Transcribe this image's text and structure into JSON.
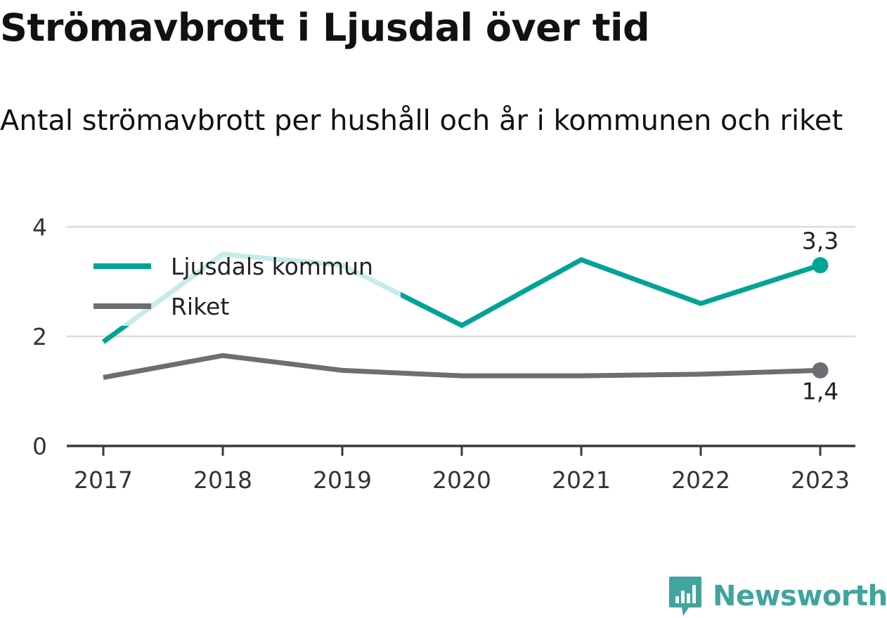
{
  "header": {
    "title": "Strömavbrott i Ljusdal över tid",
    "subtitle": "Antal strömavbrott per hushåll och år i kommunen och riket"
  },
  "brand": {
    "name": "Newsworthy",
    "icon": "bar-chart-speech-bubble-icon",
    "color": "#3fa59d"
  },
  "chart_data": {
    "type": "line",
    "x": [
      "2017",
      "2018",
      "2019",
      "2020",
      "2021",
      "2022",
      "2023"
    ],
    "ylim": [
      0,
      4
    ],
    "yticks": [
      0,
      2,
      4
    ],
    "grid": true,
    "legend": "top-left",
    "series": [
      {
        "name": "Ljusdals kommun",
        "color": "#00a396",
        "values": [
          1.9,
          3.5,
          3.3,
          2.2,
          3.4,
          2.6,
          3.3
        ],
        "end_label": "3,3"
      },
      {
        "name": "Riket",
        "color": "#6e6d73",
        "values": [
          1.25,
          1.65,
          1.38,
          1.28,
          1.28,
          1.31,
          1.38
        ],
        "end_label": "1,4"
      }
    ]
  }
}
